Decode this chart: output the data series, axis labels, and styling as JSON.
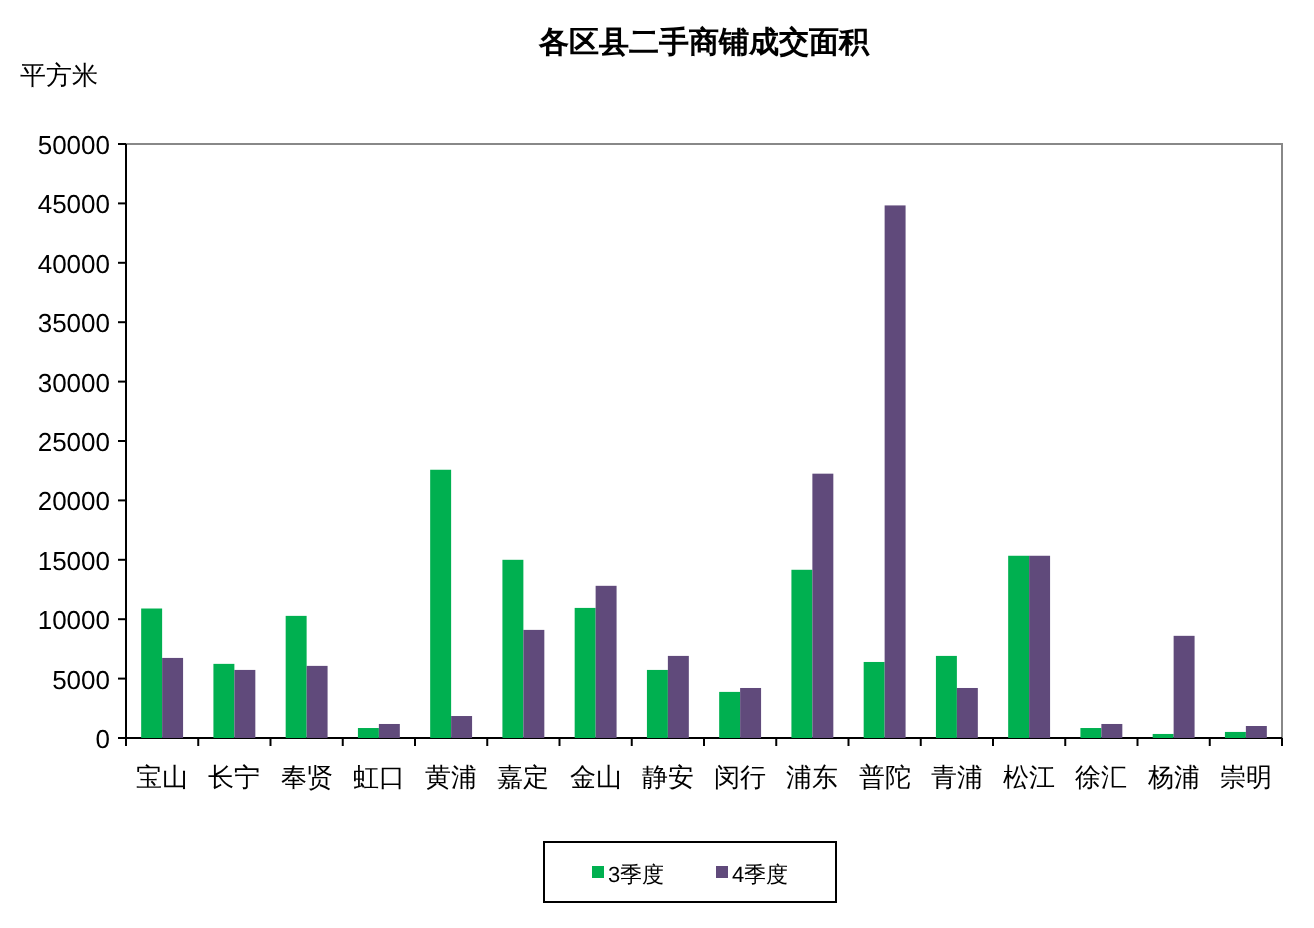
{
  "chart_data": {
    "type": "bar",
    "title": "各区县二手商铺成交面积",
    "ylabel": "平方米",
    "categories": [
      "宝山",
      "长宁",
      "奉贤",
      "虹口",
      "黄浦",
      "嘉定",
      "金山",
      "静安",
      "闵行",
      "浦东",
      "普陀",
      "青浦",
      "松江",
      "徐汇",
      "杨浦",
      "崇明"
    ],
    "series": [
      {
        "name": "3季度",
        "color": "#00b050",
        "values": [
          10900,
          6240,
          10280,
          840,
          22580,
          15000,
          10950,
          5730,
          3880,
          14160,
          6400,
          6910,
          15340,
          840,
          340,
          510
        ]
      },
      {
        "name": "4季度",
        "color": "#604a7b",
        "values": [
          6740,
          5730,
          6070,
          1180,
          1850,
          9100,
          12810,
          6910,
          4210,
          22250,
          44830,
          4210,
          15340,
          1180,
          8600,
          1010
        ]
      }
    ],
    "ylim": [
      0,
      50000
    ],
    "yticks": [
      0,
      5000,
      10000,
      15000,
      20000,
      25000,
      30000,
      35000,
      40000,
      45000,
      50000
    ],
    "grid": false,
    "legend": "bottom"
  }
}
